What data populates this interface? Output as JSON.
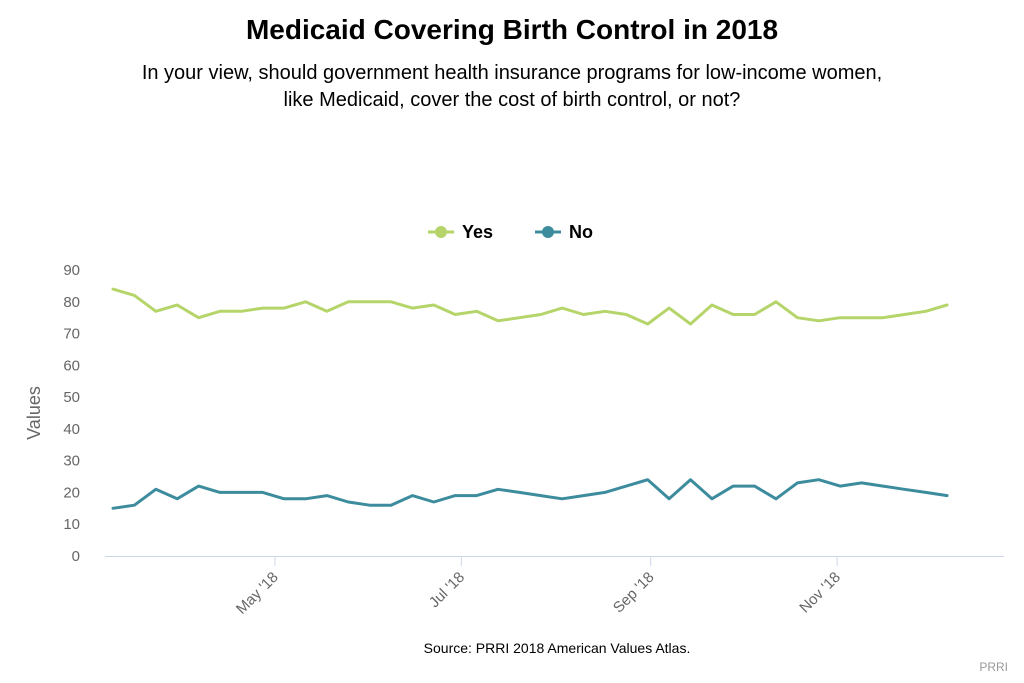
{
  "chart_data": {
    "type": "line",
    "title": "Medicaid Covering Birth Control in 2018",
    "subtitle": [
      "In your view, should government health insurance programs for low-income women,",
      "like Medicaid, cover the cost of birth control, or not?"
    ],
    "ylabel": "Values",
    "xlabel": "",
    "ylim": [
      0,
      90
    ],
    "yticks": [
      0,
      10,
      20,
      30,
      40,
      50,
      60,
      70,
      80,
      90
    ],
    "xtick_labels": [
      "May '18",
      "Jul '18",
      "Sep '18",
      "Nov '18"
    ],
    "xtick_dates": [
      "2018-05-01",
      "2018-07-01",
      "2018-09-01",
      "2018-11-01"
    ],
    "xlim": [
      "2018-03-09",
      "2018-12-23"
    ],
    "legend_position": "top-center",
    "grid": false,
    "x": [
      "2018-03-09",
      "2018-03-16",
      "2018-03-23",
      "2018-03-30",
      "2018-04-06",
      "2018-04-13",
      "2018-04-20",
      "2018-04-27",
      "2018-05-04",
      "2018-05-11",
      "2018-05-18",
      "2018-05-25",
      "2018-06-01",
      "2018-06-08",
      "2018-06-15",
      "2018-06-22",
      "2018-06-29",
      "2018-07-06",
      "2018-07-13",
      "2018-07-20",
      "2018-07-27",
      "2018-08-03",
      "2018-08-10",
      "2018-08-17",
      "2018-08-24",
      "2018-08-31",
      "2018-09-07",
      "2018-09-14",
      "2018-09-21",
      "2018-09-28",
      "2018-10-05",
      "2018-10-12",
      "2018-10-19",
      "2018-10-26",
      "2018-11-02",
      "2018-11-09",
      "2018-11-16",
      "2018-11-23",
      "2018-11-30",
      "2018-12-07",
      "2018-12-14",
      "2018-12-21"
    ],
    "series": [
      {
        "name": "Yes",
        "color": "#b5d56a",
        "values": [
          84,
          82,
          77,
          79,
          75,
          77,
          77,
          78,
          78,
          80,
          77,
          80,
          80,
          80,
          78,
          79,
          76,
          77,
          74,
          75,
          76,
          78,
          76,
          77,
          76,
          73,
          78,
          73,
          79,
          76,
          76,
          80,
          75,
          74,
          75,
          75,
          75,
          76,
          77,
          79,
          null,
          null
        ]
      },
      {
        "name": "No",
        "color": "#3d8c9e",
        "values": [
          15,
          16,
          21,
          18,
          22,
          20,
          20,
          20,
          18,
          18,
          19,
          17,
          16,
          16,
          19,
          17,
          19,
          19,
          21,
          20,
          19,
          18,
          19,
          20,
          22,
          24,
          18,
          24,
          18,
          22,
          22,
          18,
          23,
          24,
          22,
          23,
          22,
          21,
          20,
          19,
          null,
          null
        ]
      }
    ],
    "source": "Source: PRRI 2018 American Values Atlas.",
    "credit": "PRRI"
  }
}
